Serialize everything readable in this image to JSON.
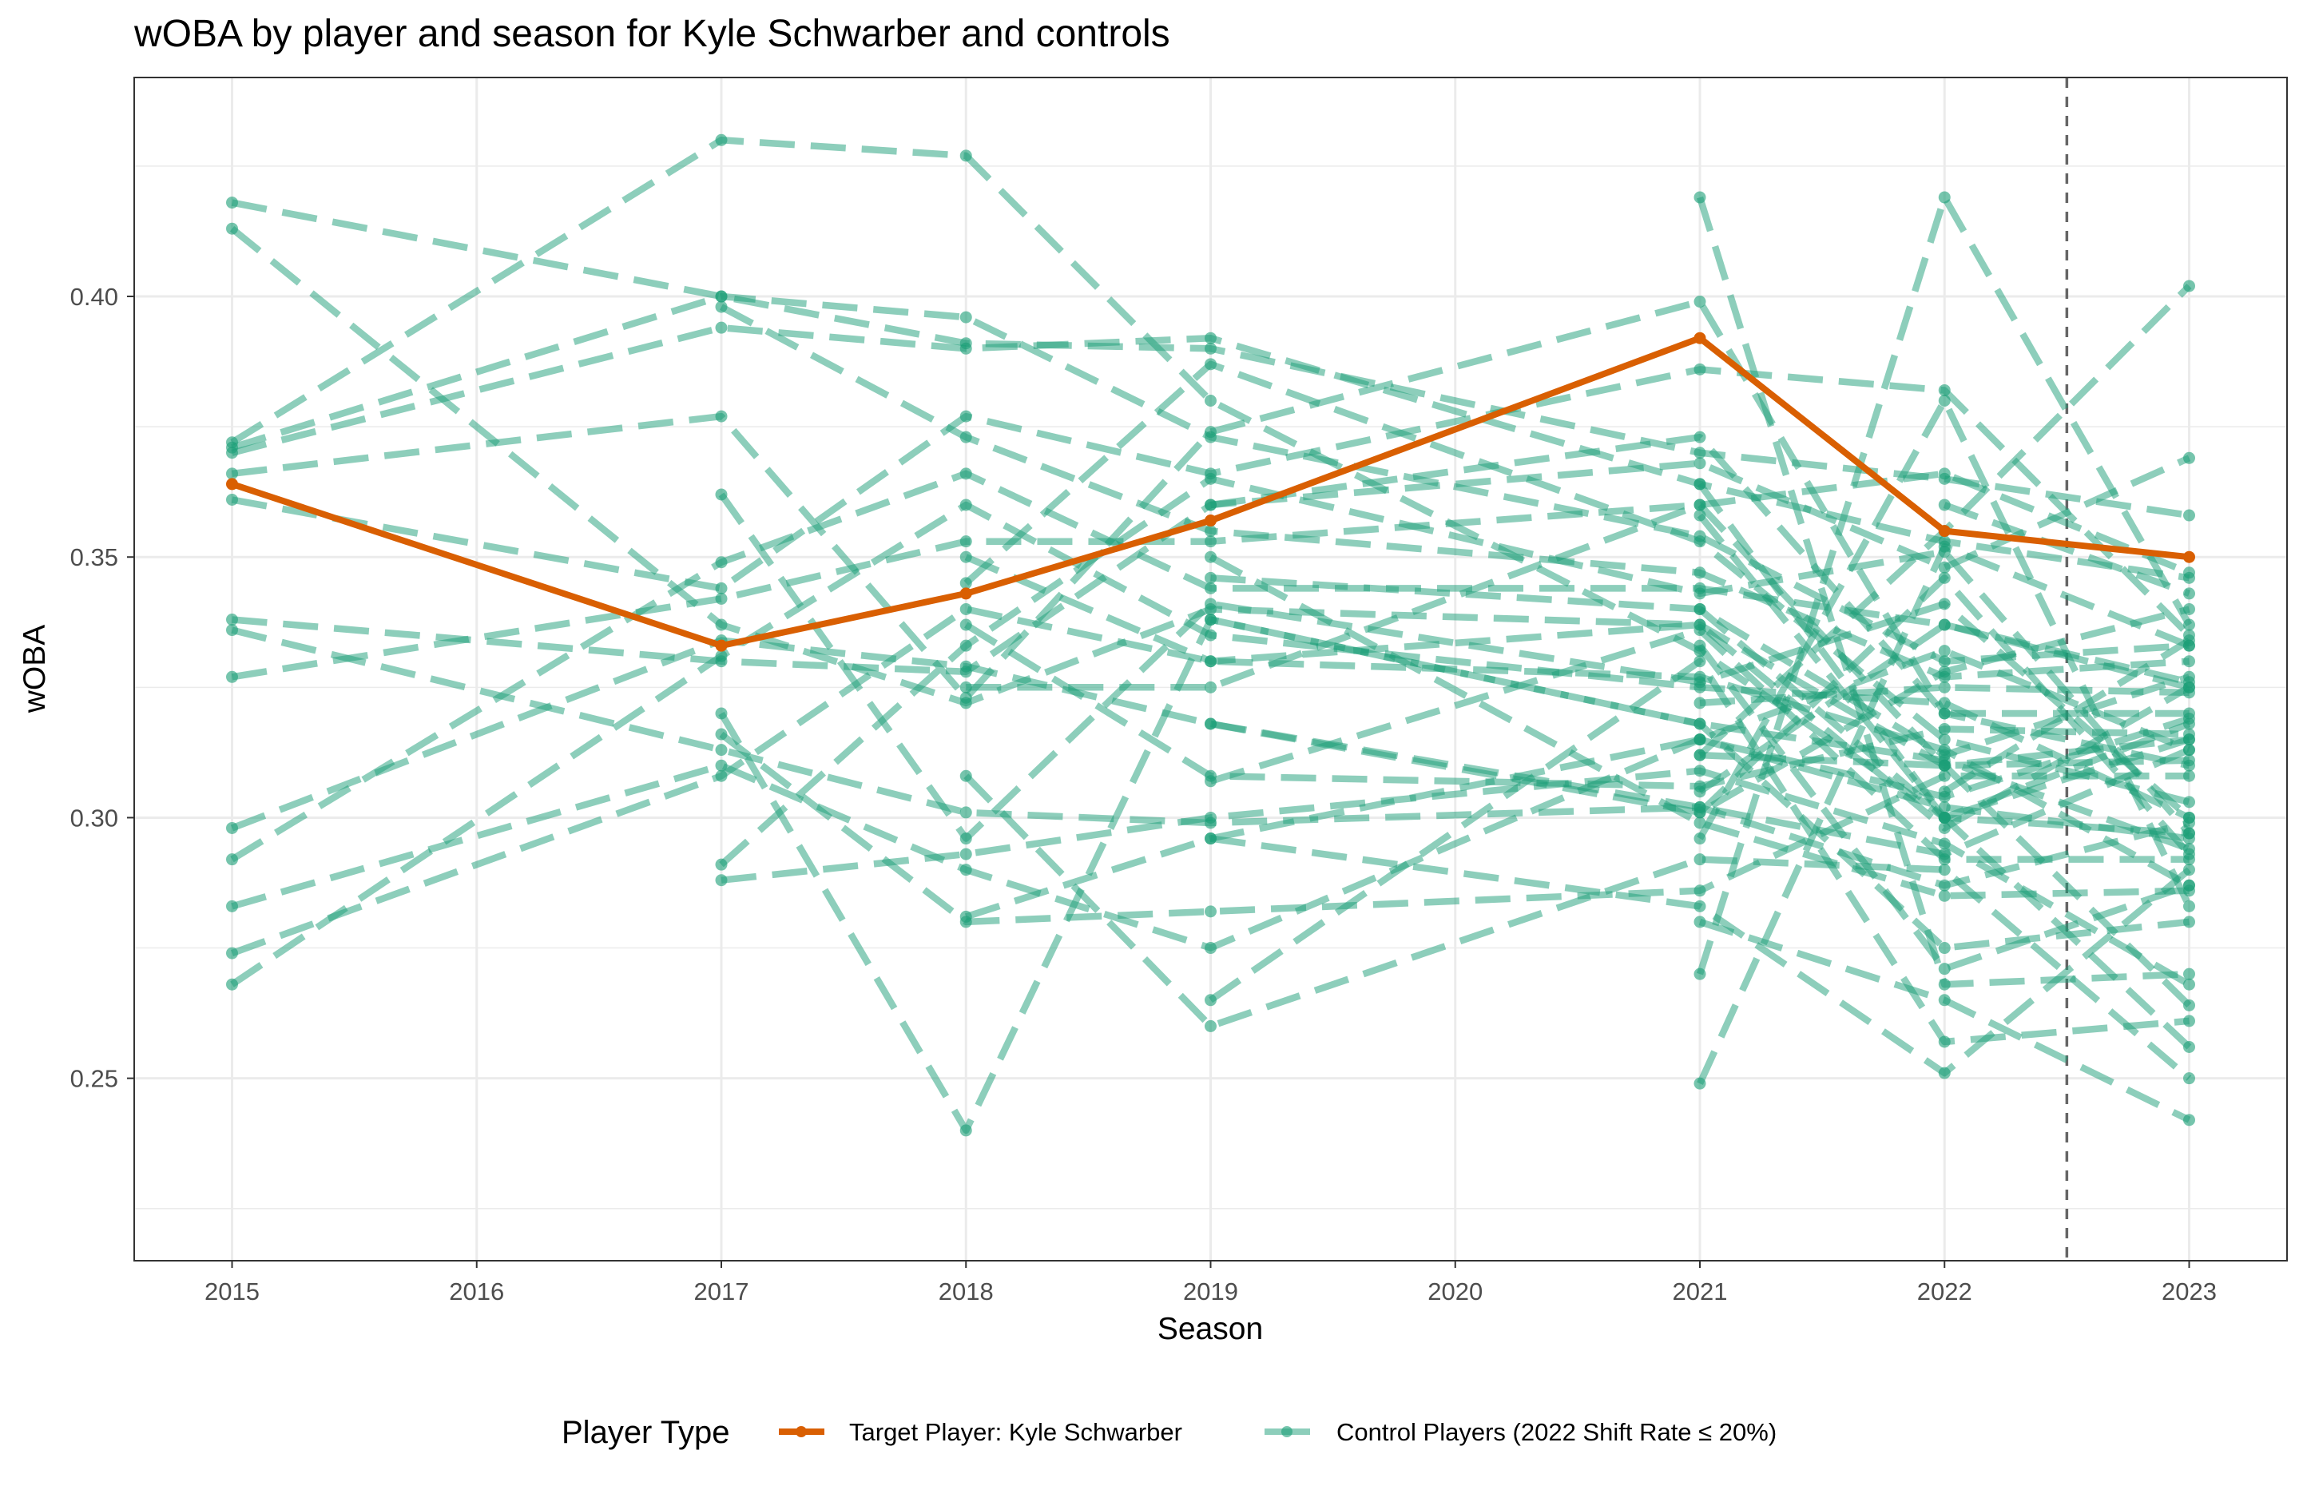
{
  "chart_data": {
    "type": "line",
    "title": "wOBA by player and season for Kyle Schwarber and controls",
    "xlabel": "Season",
    "ylabel": "wOBA",
    "xlim": [
      2014.6,
      2023.4
    ],
    "ylim": [
      0.215,
      0.442
    ],
    "x_ticks": [
      "2015",
      "2016",
      "2017",
      "2018",
      "2019",
      "2020",
      "2021",
      "2022",
      "2023"
    ],
    "y_ticks": [
      "0.25",
      "0.30",
      "0.35",
      "0.40"
    ],
    "x_tick_values": [
      2015,
      2016,
      2017,
      2018,
      2019,
      2020,
      2021,
      2022,
      2023
    ],
    "y_tick_values": [
      0.25,
      0.3,
      0.35,
      0.4
    ],
    "grid": true,
    "reference_line": {
      "x": 2022.5,
      "style": "dashed"
    },
    "legend": {
      "position": "bottom",
      "title": "Player Type",
      "entries": [
        "Target Player: Kyle Schwarber",
        "Control Players (2022 Shift Rate ≤ 20%)"
      ]
    },
    "colors": {
      "target": "#d95f02",
      "control": "#1b9e77"
    },
    "target_series": {
      "name": "Target Player: Kyle Schwarber",
      "points": [
        [
          2015,
          0.364
        ],
        [
          2017,
          0.333
        ],
        [
          2018,
          0.343
        ],
        [
          2019,
          0.357
        ],
        [
          2021,
          0.392
        ],
        [
          2022,
          0.355
        ],
        [
          2023,
          0.35
        ]
      ]
    },
    "control_series": [
      {
        "points": [
          [
            2015,
            0.413
          ],
          [
            2017,
            0.337
          ],
          [
            2018,
            0.322
          ],
          [
            2019,
            0.34
          ],
          [
            2021,
            0.337
          ],
          [
            2022,
            0.31
          ],
          [
            2023,
            0.315
          ]
        ]
      },
      {
        "points": [
          [
            2015,
            0.418
          ],
          [
            2017,
            0.4
          ],
          [
            2018,
            0.391
          ],
          [
            2019,
            0.39
          ],
          [
            2021,
            0.37
          ],
          [
            2022,
            0.365
          ],
          [
            2023,
            0.358
          ]
        ]
      },
      {
        "points": [
          [
            2015,
            0.372
          ],
          [
            2017,
            0.43
          ],
          [
            2018,
            0.427
          ],
          [
            2019,
            0.38
          ],
          [
            2021,
            0.332
          ],
          [
            2022,
            0.3
          ],
          [
            2023,
            0.297
          ]
        ]
      },
      {
        "points": [
          [
            2015,
            0.371
          ],
          [
            2017,
            0.4
          ],
          [
            2018,
            0.396
          ],
          [
            2019,
            0.373
          ],
          [
            2021,
            0.354
          ],
          [
            2022,
            0.33
          ],
          [
            2023,
            0.333
          ]
        ]
      },
      {
        "points": [
          [
            2015,
            0.37
          ],
          [
            2017,
            0.394
          ],
          [
            2018,
            0.39
          ],
          [
            2019,
            0.392
          ],
          [
            2021,
            0.364
          ],
          [
            2022,
            0.353
          ],
          [
            2023,
            0.346
          ]
        ]
      },
      {
        "points": [
          [
            2015,
            0.366
          ],
          [
            2017,
            0.377
          ],
          [
            2018,
            0.323
          ],
          [
            2019,
            0.374
          ],
          [
            2021,
            0.399
          ],
          [
            2022,
            0.32
          ],
          [
            2023,
            0.31
          ]
        ]
      },
      {
        "points": [
          [
            2015,
            0.361
          ],
          [
            2017,
            0.344
          ],
          [
            2018,
            0.377
          ],
          [
            2019,
            0.366
          ],
          [
            2021,
            0.386
          ],
          [
            2022,
            0.382
          ],
          [
            2023,
            0.335
          ]
        ]
      },
      {
        "points": [
          [
            2015,
            0.338
          ],
          [
            2017,
            0.33
          ],
          [
            2018,
            0.328
          ],
          [
            2019,
            0.36
          ],
          [
            2021,
            0.368
          ],
          [
            2022,
            0.348
          ],
          [
            2023,
            0.369
          ]
        ]
      },
      {
        "points": [
          [
            2015,
            0.336
          ],
          [
            2017,
            0.313
          ],
          [
            2018,
            0.301
          ],
          [
            2019,
            0.299
          ],
          [
            2021,
            0.302
          ],
          [
            2022,
            0.287
          ],
          [
            2023,
            0.299
          ]
        ]
      },
      {
        "points": [
          [
            2015,
            0.327
          ],
          [
            2017,
            0.342
          ],
          [
            2018,
            0.353
          ],
          [
            2019,
            0.353
          ],
          [
            2021,
            0.36
          ],
          [
            2022,
            0.366
          ],
          [
            2023,
            0.347
          ]
        ]
      },
      {
        "points": [
          [
            2015,
            0.298
          ],
          [
            2017,
            0.334
          ],
          [
            2018,
            0.329
          ],
          [
            2019,
            0.318
          ],
          [
            2021,
            0.302
          ],
          [
            2022,
            0.293
          ],
          [
            2023,
            0.313
          ]
        ]
      },
      {
        "points": [
          [
            2015,
            0.292
          ],
          [
            2017,
            0.349
          ],
          [
            2018,
            0.366
          ],
          [
            2019,
            0.344
          ],
          [
            2021,
            0.344
          ],
          [
            2022,
            0.337
          ],
          [
            2023,
            0.326
          ]
        ]
      },
      {
        "points": [
          [
            2015,
            0.283
          ],
          [
            2017,
            0.31
          ],
          [
            2018,
            0.29
          ],
          [
            2019,
            0.275
          ],
          [
            2021,
            0.315
          ],
          [
            2022,
            0.304
          ],
          [
            2023,
            0.319
          ]
        ]
      },
      {
        "points": [
          [
            2015,
            0.274
          ],
          [
            2017,
            0.308
          ],
          [
            2018,
            0.34
          ],
          [
            2019,
            0.33
          ],
          [
            2021,
            0.327
          ],
          [
            2022,
            0.313
          ],
          [
            2023,
            0.287
          ]
        ]
      },
      {
        "points": [
          [
            2015,
            0.268
          ],
          [
            2017,
            0.331
          ],
          [
            2018,
            0.36
          ],
          [
            2019,
            0.335
          ],
          [
            2021,
            0.325
          ],
          [
            2022,
            0.322
          ],
          [
            2023,
            0.3
          ]
        ]
      },
      {
        "points": [
          [
            2017,
            0.362
          ],
          [
            2018,
            0.296
          ],
          [
            2019,
            0.341
          ],
          [
            2021,
            0.326
          ],
          [
            2022,
            0.341
          ],
          [
            2023,
            0.3
          ]
        ]
      },
      {
        "points": [
          [
            2017,
            0.291
          ],
          [
            2018,
            0.333
          ],
          [
            2019,
            0.365
          ],
          [
            2021,
            0.343
          ],
          [
            2022,
            0.351
          ],
          [
            2023,
            0.297
          ]
        ]
      },
      {
        "points": [
          [
            2017,
            0.288
          ],
          [
            2018,
            0.293
          ],
          [
            2019,
            0.3
          ],
          [
            2021,
            0.309
          ],
          [
            2022,
            0.295
          ],
          [
            2023,
            0.268
          ]
        ]
      },
      {
        "points": [
          [
            2017,
            0.398
          ],
          [
            2018,
            0.373
          ],
          [
            2019,
            0.355
          ],
          [
            2021,
            0.347
          ],
          [
            2022,
            0.327
          ],
          [
            2023,
            0.33
          ]
        ]
      },
      {
        "points": [
          [
            2017,
            0.32
          ],
          [
            2018,
            0.24
          ],
          [
            2019,
            0.338
          ],
          [
            2021,
            0.318
          ],
          [
            2022,
            0.275
          ],
          [
            2023,
            0.28
          ]
        ]
      },
      {
        "points": [
          [
            2017,
            0.316
          ],
          [
            2018,
            0.28
          ],
          [
            2019,
            0.282
          ],
          [
            2021,
            0.286
          ],
          [
            2022,
            0.308
          ],
          [
            2023,
            0.308
          ]
        ]
      },
      {
        "points": [
          [
            2018,
            0.325
          ],
          [
            2019,
            0.325
          ],
          [
            2021,
            0.36
          ],
          [
            2022,
            0.31
          ],
          [
            2023,
            0.264
          ]
        ]
      },
      {
        "points": [
          [
            2018,
            0.308
          ],
          [
            2019,
            0.26
          ],
          [
            2021,
            0.292
          ],
          [
            2022,
            0.29
          ],
          [
            2023,
            0.25
          ]
        ]
      },
      {
        "points": [
          [
            2018,
            0.35
          ],
          [
            2019,
            0.33
          ],
          [
            2021,
            0.337
          ],
          [
            2022,
            0.298
          ],
          [
            2023,
            0.325
          ]
        ]
      },
      {
        "points": [
          [
            2018,
            0.345
          ],
          [
            2019,
            0.387
          ],
          [
            2021,
            0.353
          ],
          [
            2022,
            0.315
          ],
          [
            2023,
            0.303
          ]
        ]
      },
      {
        "points": [
          [
            2018,
            0.337
          ],
          [
            2019,
            0.308
          ],
          [
            2021,
            0.306
          ],
          [
            2022,
            0.317
          ],
          [
            2023,
            0.316
          ]
        ]
      },
      {
        "points": [
          [
            2018,
            0.281
          ],
          [
            2019,
            0.296
          ],
          [
            2021,
            0.315
          ],
          [
            2022,
            0.332
          ],
          [
            2023,
            0.313
          ]
        ]
      },
      {
        "points": [
          [
            2019,
            0.318
          ],
          [
            2021,
            0.301
          ],
          [
            2022,
            0.328
          ],
          [
            2023,
            0.34
          ]
        ]
      },
      {
        "points": [
          [
            2019,
            0.307
          ],
          [
            2021,
            0.336
          ],
          [
            2022,
            0.292
          ],
          [
            2023,
            0.292
          ]
        ]
      },
      {
        "points": [
          [
            2019,
            0.296
          ],
          [
            2021,
            0.283
          ],
          [
            2022,
            0.251
          ],
          [
            2023,
            0.29
          ]
        ]
      },
      {
        "points": [
          [
            2019,
            0.265
          ],
          [
            2021,
            0.33
          ],
          [
            2022,
            0.257
          ],
          [
            2023,
            0.261
          ]
        ]
      },
      {
        "points": [
          [
            2019,
            0.35
          ],
          [
            2021,
            0.299
          ],
          [
            2022,
            0.285
          ],
          [
            2023,
            0.286
          ]
        ]
      },
      {
        "points": [
          [
            2019,
            0.36
          ],
          [
            2021,
            0.373
          ],
          [
            2022,
            0.32
          ],
          [
            2023,
            0.32
          ]
        ]
      },
      {
        "points": [
          [
            2019,
            0.346
          ],
          [
            2021,
            0.34
          ],
          [
            2022,
            0.312
          ],
          [
            2023,
            0.327
          ]
        ]
      },
      {
        "points": [
          [
            2019,
            0.338
          ],
          [
            2021,
            0.318
          ],
          [
            2022,
            0.311
          ],
          [
            2023,
            0.294
          ]
        ]
      },
      {
        "points": [
          [
            2021,
            0.419
          ],
          [
            2022,
            0.268
          ],
          [
            2023,
            0.27
          ]
        ]
      },
      {
        "points": [
          [
            2021,
            0.249
          ],
          [
            2022,
            0.352
          ],
          [
            2023,
            0.333
          ]
        ]
      },
      {
        "points": [
          [
            2021,
            0.27
          ],
          [
            2022,
            0.419
          ],
          [
            2023,
            0.337
          ]
        ]
      },
      {
        "points": [
          [
            2021,
            0.28
          ],
          [
            2022,
            0.265
          ],
          [
            2023,
            0.242
          ]
        ]
      },
      {
        "points": [
          [
            2021,
            0.312
          ],
          [
            2022,
            0.355
          ],
          [
            2023,
            0.402
          ]
        ]
      },
      {
        "points": [
          [
            2021,
            0.296
          ],
          [
            2022,
            0.38
          ],
          [
            2023,
            0.283
          ]
        ]
      },
      {
        "points": [
          [
            2021,
            0.358
          ],
          [
            2022,
            0.3
          ],
          [
            2023,
            0.315
          ]
        ]
      },
      {
        "points": [
          [
            2021,
            0.322
          ],
          [
            2022,
            0.325
          ],
          [
            2023,
            0.324
          ]
        ]
      },
      {
        "points": [
          [
            2021,
            0.364
          ],
          [
            2022,
            0.3
          ],
          [
            2023,
            0.256
          ]
        ]
      },
      {
        "points": [
          [
            2021,
            0.333
          ],
          [
            2022,
            0.271
          ],
          [
            2023,
            0.287
          ]
        ]
      },
      {
        "points": [
          [
            2021,
            0.312
          ],
          [
            2022,
            0.31
          ],
          [
            2023,
            0.311
          ]
        ]
      },
      {
        "points": [
          [
            2021,
            0.305
          ],
          [
            2022,
            0.337
          ],
          [
            2023,
            0.325
          ]
        ]
      },
      {
        "points": [
          [
            2021,
            0.301
          ],
          [
            2022,
            0.346
          ],
          [
            2023,
            0.293
          ]
        ]
      },
      {
        "points": [
          [
            2021,
            0.315
          ],
          [
            2022,
            0.302
          ],
          [
            2023,
            0.296
          ]
        ]
      },
      {
        "points": [
          [
            2021,
            0.34
          ],
          [
            2022,
            0.3
          ],
          [
            2023,
            0.318
          ]
        ]
      },
      {
        "points": [
          [
            2022,
            0.36
          ],
          [
            2023,
            0.343
          ]
        ]
      },
      {
        "points": [
          [
            2022,
            0.305
          ],
          [
            2023,
            0.334
          ]
        ]
      }
    ]
  }
}
